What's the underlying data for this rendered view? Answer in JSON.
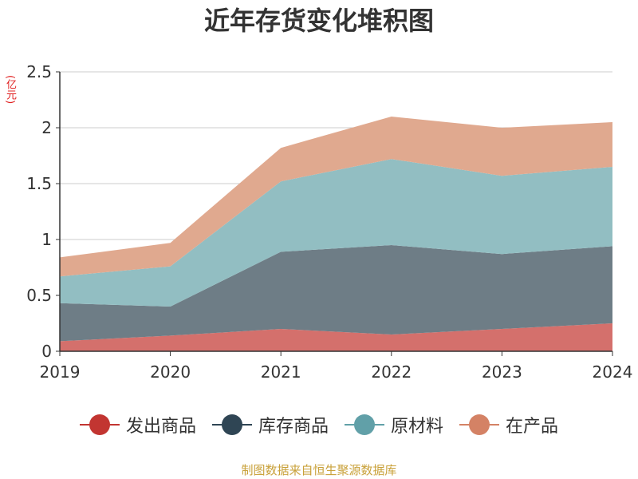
{
  "chart_data": {
    "type": "area",
    "stacked": true,
    "title": "近年存货变化堆积图",
    "unit_label": "(亿元)",
    "x": [
      "2019",
      "2020",
      "2021",
      "2022",
      "2023",
      "2024"
    ],
    "ylim": [
      0,
      2.5
    ],
    "yticks": [
      "0",
      "0.5",
      "1",
      "1.5",
      "2",
      "2.5"
    ],
    "grid": true,
    "legend_position": "bottom",
    "series": [
      {
        "name": "发出商品",
        "color": "#c23531",
        "fill": "#d4706c",
        "values": [
          0.09,
          0.14,
          0.2,
          0.15,
          0.2,
          0.25
        ]
      },
      {
        "name": "库存商品",
        "color": "#2f4554",
        "fill": "#6e7d86",
        "values": [
          0.34,
          0.26,
          0.69,
          0.8,
          0.67,
          0.69
        ]
      },
      {
        "name": "原材料",
        "color": "#61a0a8",
        "fill": "#92bec2",
        "values": [
          0.24,
          0.36,
          0.63,
          0.77,
          0.7,
          0.71
        ]
      },
      {
        "name": "在产品",
        "color": "#d48265",
        "fill": "#e0a98f",
        "values": [
          0.17,
          0.21,
          0.3,
          0.38,
          0.43,
          0.4
        ]
      }
    ]
  },
  "source": "制图数据来自恒生聚源数据库"
}
